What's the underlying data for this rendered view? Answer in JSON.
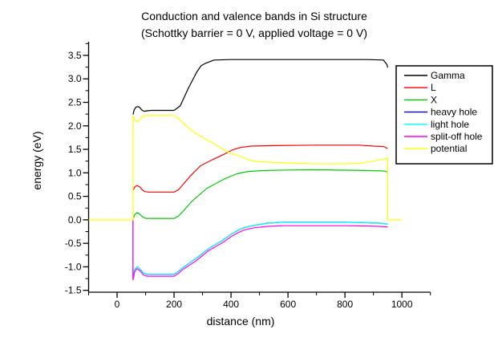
{
  "chart_data": {
    "type": "line",
    "title": "Conduction and valence bands in Si structure",
    "subtitle": "(Schottky barrier = 0 V, applied voltage = 0 V)",
    "xlabel": "distance (nm)",
    "ylabel": "energy (eV)",
    "xlim": [
      -100,
      1100
    ],
    "ylim": [
      -1.54,
      3.79
    ],
    "grid": false,
    "legend_position": "right",
    "x_ticks": [
      {
        "v": 0,
        "label": "0"
      },
      {
        "v": 200,
        "label": "200"
      },
      {
        "v": 400,
        "label": "400"
      },
      {
        "v": 600,
        "label": "600"
      },
      {
        "v": 800,
        "label": "800"
      },
      {
        "v": 1000,
        "label": "1000"
      }
    ],
    "x_minor_step": 100,
    "y_ticks": [
      {
        "v": -1.5,
        "label": "-1.5"
      },
      {
        "v": -1.0,
        "label": "-1.0"
      },
      {
        "v": -0.5,
        "label": "-0.5"
      },
      {
        "v": 0.0,
        "label": "0.0"
      },
      {
        "v": 0.5,
        "label": "0.5"
      },
      {
        "v": 1.0,
        "label": "1.0"
      },
      {
        "v": 1.5,
        "label": "1.5"
      },
      {
        "v": 2.0,
        "label": "2.0"
      },
      {
        "v": 2.5,
        "label": "2.5"
      },
      {
        "v": 3.0,
        "label": "3.0"
      },
      {
        "v": 3.5,
        "label": "3.5"
      }
    ],
    "y_minor_step": 0.25,
    "series": [
      {
        "name": "Gamma",
        "color": "#000000",
        "points": [
          [
            56,
            2.24
          ],
          [
            60,
            2.34
          ],
          [
            66,
            2.4
          ],
          [
            74,
            2.41
          ],
          [
            80,
            2.39
          ],
          [
            86,
            2.34
          ],
          [
            95,
            2.31
          ],
          [
            105,
            2.32
          ],
          [
            120,
            2.33
          ],
          [
            200,
            2.33
          ],
          [
            212,
            2.38
          ],
          [
            222,
            2.43
          ],
          [
            250,
            2.8
          ],
          [
            280,
            3.15
          ],
          [
            295,
            3.28
          ],
          [
            310,
            3.33
          ],
          [
            340,
            3.4
          ],
          [
            400,
            3.41
          ],
          [
            500,
            3.41
          ],
          [
            700,
            3.41
          ],
          [
            880,
            3.41
          ],
          [
            935,
            3.4
          ],
          [
            948,
            3.3
          ],
          [
            950,
            3.24
          ]
        ]
      },
      {
        "name": "L",
        "color": "#ff0000",
        "points": [
          [
            56,
            0.62
          ],
          [
            62,
            0.7
          ],
          [
            70,
            0.73
          ],
          [
            80,
            0.7
          ],
          [
            88,
            0.64
          ],
          [
            98,
            0.6
          ],
          [
            110,
            0.59
          ],
          [
            200,
            0.59
          ],
          [
            215,
            0.64
          ],
          [
            230,
            0.74
          ],
          [
            260,
            0.95
          ],
          [
            293,
            1.15
          ],
          [
            335,
            1.28
          ],
          [
            377,
            1.4
          ],
          [
            406,
            1.49
          ],
          [
            434,
            1.54
          ],
          [
            470,
            1.57
          ],
          [
            555,
            1.58
          ],
          [
            700,
            1.59
          ],
          [
            850,
            1.59
          ],
          [
            900,
            1.57
          ],
          [
            935,
            1.56
          ],
          [
            950,
            1.52
          ]
        ]
      },
      {
        "name": "X",
        "color": "#00cc00",
        "points": [
          [
            56,
            0.02
          ],
          [
            62,
            0.11
          ],
          [
            70,
            0.155
          ],
          [
            80,
            0.12
          ],
          [
            90,
            0.06
          ],
          [
            102,
            0.03
          ],
          [
            200,
            0.03
          ],
          [
            215,
            0.08
          ],
          [
            230,
            0.17
          ],
          [
            260,
            0.38
          ],
          [
            315,
            0.67
          ],
          [
            377,
            0.87
          ],
          [
            420,
            0.98
          ],
          [
            460,
            1.03
          ],
          [
            520,
            1.05
          ],
          [
            600,
            1.06
          ],
          [
            700,
            1.065
          ],
          [
            870,
            1.05
          ],
          [
            935,
            1.04
          ],
          [
            950,
            1.02
          ]
        ]
      },
      {
        "name": "heavy hole",
        "color": "#0000ff",
        "points": [
          [
            56,
            0
          ],
          [
            56,
            -1.21
          ],
          [
            62,
            -1.06
          ],
          [
            70,
            -1.0
          ],
          [
            80,
            -1.04
          ],
          [
            92,
            -1.13
          ],
          [
            105,
            -1.16
          ],
          [
            200,
            -1.16
          ],
          [
            215,
            -1.1
          ],
          [
            230,
            -1.02
          ],
          [
            273,
            -0.84
          ],
          [
            320,
            -0.62
          ],
          [
            369,
            -0.44
          ],
          [
            400,
            -0.31
          ],
          [
            425,
            -0.22
          ],
          [
            450,
            -0.16
          ],
          [
            480,
            -0.12
          ],
          [
            527,
            -0.07
          ],
          [
            583,
            -0.05
          ],
          [
            700,
            -0.05
          ],
          [
            800,
            -0.05
          ],
          [
            870,
            -0.06
          ],
          [
            920,
            -0.07
          ],
          [
            950,
            -0.09
          ]
        ]
      },
      {
        "name": "light hole",
        "color": "#00ffff",
        "points": [
          [
            56,
            0
          ],
          [
            56,
            -1.21
          ],
          [
            62,
            -1.06
          ],
          [
            70,
            -1.0
          ],
          [
            80,
            -1.04
          ],
          [
            92,
            -1.13
          ],
          [
            105,
            -1.16
          ],
          [
            200,
            -1.16
          ],
          [
            215,
            -1.1
          ],
          [
            230,
            -1.02
          ],
          [
            273,
            -0.84
          ],
          [
            320,
            -0.62
          ],
          [
            369,
            -0.44
          ],
          [
            400,
            -0.31
          ],
          [
            425,
            -0.22
          ],
          [
            450,
            -0.16
          ],
          [
            480,
            -0.12
          ],
          [
            527,
            -0.07
          ],
          [
            583,
            -0.05
          ],
          [
            700,
            -0.05
          ],
          [
            800,
            -0.05
          ],
          [
            870,
            -0.06
          ],
          [
            920,
            -0.07
          ],
          [
            950,
            -0.09
          ]
        ]
      },
      {
        "name": "split-off hole",
        "color": "#ff00ff",
        "points": [
          [
            56,
            0
          ],
          [
            56,
            -1.28
          ],
          [
            62,
            -1.1
          ],
          [
            70,
            -1.04
          ],
          [
            80,
            -1.08
          ],
          [
            92,
            -1.17
          ],
          [
            105,
            -1.2
          ],
          [
            200,
            -1.2
          ],
          [
            215,
            -1.14
          ],
          [
            230,
            -1.06
          ],
          [
            273,
            -0.89
          ],
          [
            320,
            -0.66
          ],
          [
            369,
            -0.49
          ],
          [
            400,
            -0.36
          ],
          [
            425,
            -0.27
          ],
          [
            450,
            -0.21
          ],
          [
            480,
            -0.17
          ],
          [
            527,
            -0.14
          ],
          [
            583,
            -0.125
          ],
          [
            700,
            -0.125
          ],
          [
            800,
            -0.125
          ],
          [
            870,
            -0.13
          ],
          [
            920,
            -0.14
          ],
          [
            950,
            -0.15
          ]
        ]
      },
      {
        "name": "potential",
        "color": "#ffff00",
        "points": [
          [
            -100,
            0
          ],
          [
            56,
            0
          ],
          [
            56,
            2.22
          ],
          [
            62,
            2.13
          ],
          [
            70,
            2.09
          ],
          [
            80,
            2.13
          ],
          [
            90,
            2.2
          ],
          [
            100,
            2.22
          ],
          [
            200,
            2.22
          ],
          [
            215,
            2.16
          ],
          [
            230,
            2.07
          ],
          [
            260,
            1.9
          ],
          [
            293,
            1.78
          ],
          [
            340,
            1.62
          ],
          [
            377,
            1.48
          ],
          [
            406,
            1.4
          ],
          [
            434,
            1.35
          ],
          [
            462,
            1.27
          ],
          [
            500,
            1.24
          ],
          [
            555,
            1.22
          ],
          [
            650,
            1.2
          ],
          [
            750,
            1.19
          ],
          [
            850,
            1.2
          ],
          [
            900,
            1.25
          ],
          [
            935,
            1.29
          ],
          [
            950,
            1.32
          ],
          [
            950,
            0
          ],
          [
            1000,
            0
          ]
        ]
      }
    ]
  }
}
